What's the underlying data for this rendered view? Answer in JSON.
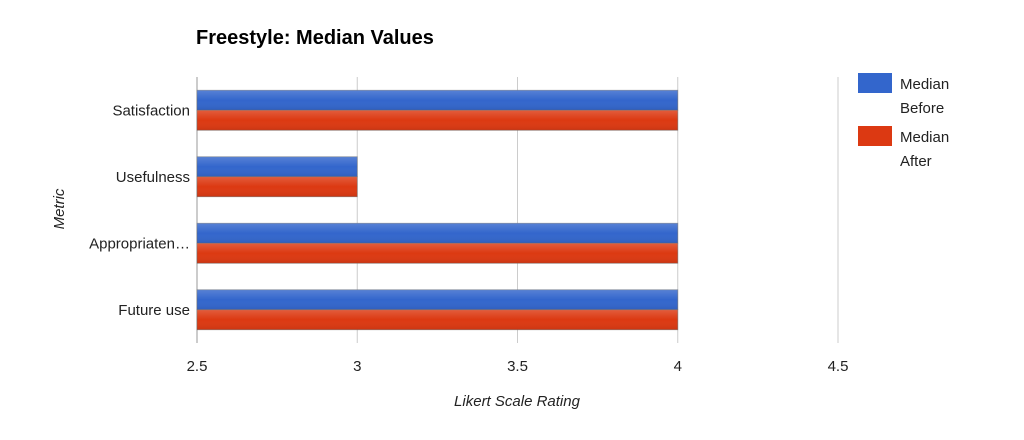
{
  "chart_data": {
    "type": "bar",
    "orientation": "horizontal",
    "title": "Freestyle: Median Values",
    "xlabel": "Likert Scale Rating",
    "ylabel": "Metric",
    "categories": [
      "Satisfaction",
      "Usefulness",
      "Appropriaten…",
      "Future use"
    ],
    "series": [
      {
        "name": "Median Before",
        "legend_lines": [
          "Median",
          "Before"
        ],
        "color": "#3366cc",
        "values": [
          4,
          3,
          4,
          4
        ]
      },
      {
        "name": "Median After",
        "legend_lines": [
          "Median",
          "After"
        ],
        "color": "#dc3912",
        "values": [
          4,
          3,
          4,
          4
        ]
      }
    ],
    "xlim": [
      2.5,
      4.5
    ],
    "xticks": [
      "2.5",
      "3",
      "3.5",
      "4",
      "4.5"
    ],
    "grid": true,
    "legend_position": "right"
  }
}
